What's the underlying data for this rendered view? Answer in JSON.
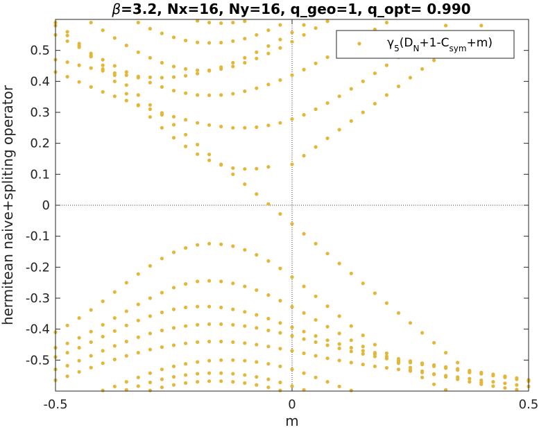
{
  "chart_data": {
    "type": "scatter",
    "title_parts": [
      {
        "text": "β",
        "italic": true
      },
      {
        "text": "=3.2, Nx=16, Ny=16, q_geo=1, q_opt= 0.990",
        "italic": false
      }
    ],
    "xlabel": "m",
    "ylabel": "hermitean naive+spliting operator",
    "xlim": [
      -0.5,
      0.5
    ],
    "ylim": [
      -0.6,
      0.6
    ],
    "x_ticks": [
      -0.5,
      0,
      0.5
    ],
    "x_tick_labels": [
      "-0.5",
      "0",
      "0.5"
    ],
    "y_ticks": [
      -0.5,
      -0.4,
      -0.3,
      -0.2,
      -0.1,
      0,
      0.1,
      0.2,
      0.3,
      0.4,
      0.5
    ],
    "y_tick_labels": [
      "-0.5",
      "-0.4",
      "-0.3",
      "-0.2",
      "-0.1",
      "0",
      "0.1",
      "0.2",
      "0.3",
      "0.4",
      "0.5"
    ],
    "grid": false,
    "zero_lines": true,
    "legend_position": "top-right",
    "marker_color": "#E3B73A",
    "series_name_parts": [
      {
        "text": "γ",
        "shift": "none"
      },
      {
        "text": "5",
        "shift": "sub"
      },
      {
        "text": "(D",
        "shift": "none"
      },
      {
        "text": "N",
        "shift": "sub"
      },
      {
        "text": "+1-C",
        "shift": "none"
      },
      {
        "text": "sym",
        "shift": "sub"
      },
      {
        "text": "+m)",
        "shift": "none"
      }
    ],
    "x": [
      -0.5,
      -0.475,
      -0.45,
      -0.425,
      -0.4,
      -0.375,
      -0.35,
      -0.325,
      -0.3,
      -0.275,
      -0.25,
      -0.225,
      -0.2,
      -0.175,
      -0.15,
      -0.125,
      -0.1,
      -0.075,
      -0.05,
      -0.025,
      0,
      0.025,
      0.05,
      0.075,
      0.1,
      0.125,
      0.15,
      0.175,
      0.2,
      0.225,
      0.25,
      0.275,
      0.3,
      0.325,
      0.35,
      0.375,
      0.4,
      0.425,
      0.45,
      0.475,
      0.5
    ],
    "series": [
      {
        "values": [
          0.58,
          0.548,
          0.516,
          0.484,
          0.452,
          0.42,
          0.388,
          0.356,
          0.324,
          0.292,
          0.26,
          0.228,
          0.196,
          0.164,
          0.132,
          0.1,
          0.068,
          0.036,
          0.004,
          -0.028,
          -0.06,
          -0.092,
          -0.124,
          -0.156,
          -0.188,
          -0.22,
          -0.252,
          -0.284,
          -0.316,
          -0.348,
          -0.38,
          -0.412,
          -0.444,
          -0.476,
          -0.508,
          -0.54,
          -0.572,
          null,
          null,
          null,
          null
        ]
      },
      {
        "values": [
          null,
          null,
          null,
          null,
          null,
          null,
          null,
          null,
          null,
          null,
          null,
          null,
          null,
          null,
          null,
          null,
          null,
          null,
          null,
          null,
          0.132,
          0.16,
          0.188,
          0.216,
          0.244,
          0.272,
          0.3,
          0.328,
          0.356,
          0.384,
          0.412,
          0.44,
          0.468,
          0.496,
          0.524,
          0.552,
          0.58,
          null,
          null,
          null,
          null
        ]
      },
      {
        "values": [
          0.59,
          0.56,
          0.522,
          0.48,
          0.44,
          0.4,
          0.36,
          0.322,
          0.285,
          0.25,
          0.218,
          0.19,
          0.165,
          0.145,
          0.13,
          0.12,
          0.117,
          0.118,
          0.124,
          null,
          null,
          null,
          null,
          null,
          null,
          null,
          null,
          null,
          null,
          null,
          null,
          null,
          null,
          null,
          null,
          null,
          null,
          null,
          null,
          null,
          null
        ]
      },
      {
        "values": [
          -0.41,
          -0.388,
          -0.364,
          -0.338,
          -0.31,
          -0.28,
          -0.25,
          -0.222,
          -0.196,
          -0.172,
          -0.152,
          -0.138,
          -0.128,
          -0.124,
          -0.126,
          -0.132,
          -0.144,
          -0.16,
          -0.18,
          -0.204,
          -0.232,
          -0.262,
          -0.294,
          -0.326,
          -0.358,
          -0.39,
          -0.42,
          -0.45,
          -0.478,
          -0.506,
          -0.532,
          -0.556,
          -0.578,
          -0.596,
          null,
          null,
          null,
          null,
          null,
          null,
          null
        ]
      },
      {
        "values": [
          0.43,
          0.415,
          0.398,
          0.382,
          0.366,
          0.352,
          0.338,
          0.324,
          0.31,
          0.298,
          0.286,
          0.276,
          0.266,
          0.259,
          0.254,
          0.25,
          0.25,
          0.252,
          0.258,
          0.266,
          0.278,
          0.292,
          0.31,
          0.33,
          0.352,
          0.376,
          0.4,
          0.426,
          0.452,
          0.478,
          0.504,
          0.53,
          0.556,
          0.58,
          null,
          null,
          null,
          null,
          null,
          null,
          null
        ]
      },
      {
        "values": [
          0.55,
          0.53,
          0.51,
          0.49,
          0.47,
          0.45,
          0.43,
          0.412,
          0.396,
          0.382,
          0.37,
          0.362,
          0.356,
          0.355,
          0.356,
          0.36,
          0.368,
          0.378,
          0.39,
          0.404,
          0.42,
          0.438,
          0.458,
          0.478,
          0.5,
          0.522,
          0.545,
          0.568,
          0.59,
          null,
          null,
          null,
          null,
          null,
          null,
          null,
          null,
          null,
          null,
          null,
          null
        ]
      },
      {
        "values": [
          null,
          null,
          null,
          0.59,
          0.565,
          0.54,
          0.516,
          0.494,
          0.476,
          0.46,
          0.448,
          0.44,
          0.436,
          0.436,
          0.44,
          0.448,
          0.46,
          0.474,
          0.49,
          0.508,
          0.528,
          0.55,
          0.572,
          0.594,
          null,
          null,
          null,
          null,
          null,
          null,
          null,
          null,
          null,
          null,
          null,
          null,
          null,
          null,
          null,
          null,
          null
        ]
      },
      {
        "values": [
          null,
          null,
          null,
          null,
          null,
          null,
          null,
          0.59,
          0.57,
          0.555,
          0.542,
          0.532,
          0.526,
          0.524,
          0.525,
          0.53,
          0.538,
          0.55,
          0.565,
          0.582,
          null,
          null,
          null,
          null,
          null,
          null,
          null,
          null,
          null,
          null,
          null,
          null,
          null,
          null,
          null,
          null,
          null,
          null,
          null,
          null,
          null
        ]
      },
      {
        "values": [
          null,
          null,
          null,
          null,
          null,
          null,
          null,
          null,
          null,
          null,
          null,
          null,
          0.595,
          0.59,
          0.588,
          0.59,
          0.594,
          null,
          null,
          null,
          null,
          null,
          null,
          null,
          null,
          null,
          null,
          null,
          null,
          null,
          null,
          null,
          null,
          null,
          null,
          null,
          null,
          null,
          null,
          null,
          null
        ]
      },
      {
        "values": [
          0.47,
          0.462,
          0.452,
          0.443,
          0.434,
          0.427,
          0.42,
          0.416,
          0.413,
          0.412,
          0.414,
          0.418,
          0.425,
          0.434,
          0.446,
          0.46,
          0.476,
          0.494,
          0.514,
          0.535,
          0.558,
          0.582,
          null,
          null,
          null,
          null,
          null,
          null,
          null,
          null,
          null,
          null,
          null,
          null,
          null,
          null,
          null,
          null,
          null,
          null,
          null
        ]
      },
      {
        "values": [
          -0.46,
          -0.446,
          -0.428,
          -0.408,
          -0.386,
          -0.364,
          -0.342,
          -0.32,
          -0.3,
          -0.282,
          -0.266,
          -0.254,
          -0.246,
          -0.244,
          -0.246,
          -0.252,
          -0.262,
          -0.274,
          -0.29,
          -0.308,
          -0.328,
          -0.348,
          -0.37,
          -0.392,
          -0.414,
          -0.436,
          -0.456,
          -0.476,
          -0.494,
          -0.51,
          -0.524,
          -0.536,
          -0.546,
          -0.554,
          -0.562,
          -0.57,
          -0.578,
          -0.584,
          -0.59,
          -0.595,
          null
        ]
      },
      {
        "values": [
          -0.49,
          -0.476,
          -0.46,
          -0.442,
          -0.424,
          -0.406,
          -0.388,
          -0.372,
          -0.358,
          -0.346,
          -0.336,
          -0.33,
          -0.327,
          -0.327,
          -0.33,
          -0.336,
          -0.344,
          -0.354,
          -0.366,
          -0.38,
          -0.394,
          -0.408,
          -0.422,
          -0.436,
          -0.448,
          -0.46,
          -0.47,
          -0.48,
          -0.488,
          -0.496,
          -0.503,
          -0.51,
          -0.516,
          -0.522,
          -0.528,
          -0.534,
          -0.54,
          -0.546,
          -0.552,
          -0.558,
          -0.564
        ]
      },
      {
        "values": [
          -0.53,
          -0.518,
          -0.502,
          -0.486,
          -0.47,
          -0.454,
          -0.44,
          -0.426,
          -0.414,
          -0.404,
          -0.396,
          -0.39,
          -0.386,
          -0.384,
          -0.384,
          -0.386,
          -0.39,
          -0.396,
          -0.404,
          -0.412,
          -0.422,
          -0.432,
          -0.442,
          -0.452,
          -0.462,
          -0.472,
          -0.48,
          -0.488,
          -0.495,
          -0.502,
          -0.508,
          -0.514,
          -0.52,
          -0.526,
          -0.532,
          -0.538,
          -0.544,
          -0.55,
          -0.556,
          -0.562,
          -0.568
        ]
      },
      {
        "values": [
          -0.565,
          -0.552,
          -0.538,
          -0.524,
          -0.51,
          -0.498,
          -0.486,
          -0.476,
          -0.466,
          -0.458,
          -0.452,
          -0.446,
          -0.442,
          -0.44,
          -0.44,
          -0.442,
          -0.445,
          -0.45,
          -0.456,
          -0.463,
          -0.47,
          -0.478,
          -0.486,
          -0.494,
          -0.501,
          -0.508,
          -0.514,
          -0.52,
          -0.525,
          -0.53,
          -0.535,
          -0.54,
          -0.545,
          -0.55,
          -0.555,
          -0.56,
          -0.565,
          -0.57,
          -0.575,
          -0.58,
          -0.585
        ]
      },
      {
        "values": [
          null,
          null,
          null,
          null,
          -0.598,
          -0.585,
          -0.57,
          -0.556,
          -0.542,
          -0.53,
          -0.52,
          -0.512,
          -0.506,
          -0.502,
          -0.5,
          -0.5,
          -0.502,
          -0.506,
          -0.512,
          -0.52,
          -0.53,
          -0.542,
          -0.556,
          -0.57,
          -0.585,
          -0.598,
          null,
          null,
          null,
          null,
          null,
          null,
          null,
          null,
          null,
          null,
          null,
          null,
          null,
          null,
          null
        ]
      },
      {
        "values": [
          null,
          null,
          null,
          null,
          null,
          null,
          -0.596,
          -0.584,
          -0.572,
          -0.562,
          -0.554,
          -0.548,
          -0.544,
          -0.542,
          -0.542,
          -0.544,
          -0.548,
          -0.554,
          -0.562,
          -0.572,
          -0.584,
          -0.596,
          null,
          null,
          null,
          null,
          null,
          null,
          null,
          null,
          null,
          null,
          null,
          null,
          null,
          null,
          null,
          null,
          null,
          null,
          null
        ]
      },
      {
        "values": [
          null,
          null,
          null,
          null,
          null,
          null,
          null,
          null,
          -0.598,
          -0.588,
          -0.58,
          -0.574,
          -0.57,
          -0.568,
          -0.568,
          -0.57,
          -0.574,
          -0.58,
          -0.588,
          -0.598,
          null,
          null,
          null,
          null,
          null,
          null,
          null,
          null,
          null,
          null,
          null,
          null,
          null,
          null,
          null,
          null,
          null,
          null,
          null,
          null,
          null
        ]
      }
    ]
  }
}
